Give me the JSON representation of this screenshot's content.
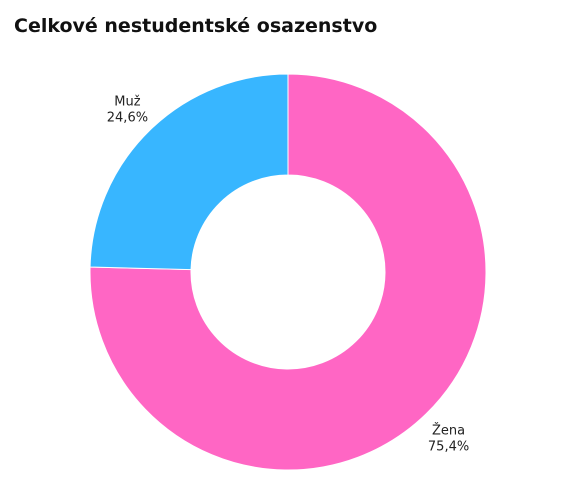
{
  "chart_data": {
    "type": "donut",
    "title": "Celkové nestudentské osazenstvo",
    "categories": [
      "Žena",
      "Muž"
    ],
    "values": [
      75.4,
      24.6
    ],
    "value_labels": [
      "75,4%",
      "24,6%"
    ],
    "colors": [
      "#ff66c4",
      "#38b6ff"
    ]
  }
}
